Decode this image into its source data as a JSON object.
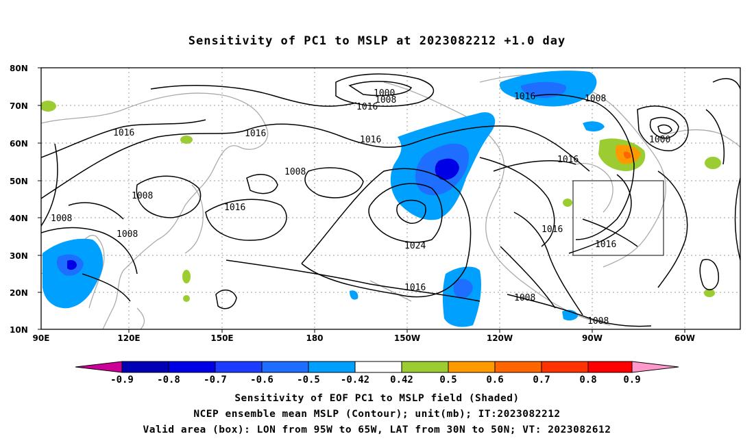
{
  "title": "Sensitivity of PC1 to MSLP at 2023082212 +1.0 day",
  "captions": [
    "Sensitivity of EOF PC1 to MSLP field (Shaded)",
    "NCEP ensemble mean MSLP (Contour); unit(mb); IT:2023082212",
    "Valid area (box): LON from 95W to 65W, LAT from 30N to 50N; VT: 2023082612"
  ],
  "map": {
    "lat_labels": [
      "80N",
      "70N",
      "60N",
      "50N",
      "40N",
      "30N",
      "20N",
      "10N"
    ],
    "lon_labels": [
      "90E",
      "120E",
      "150E",
      "180",
      "150W",
      "120W",
      "90W",
      "60W"
    ],
    "contour_labels": [
      "1000",
      "1008",
      "1016",
      "1016",
      "1016",
      "1008",
      "1008",
      "1016",
      "1008",
      "1016",
      "1024",
      "1016",
      "1008",
      "1008",
      "1016",
      "1008",
      "1000",
      "1016",
      "1016"
    ],
    "colors": {
      "coast": "#aaaaaa",
      "contour": "#000000"
    }
  },
  "colorbar": {
    "tick_labels": [
      "-0.9",
      "-0.8",
      "-0.7",
      "-0.6",
      "-0.5",
      "-0.42",
      "0.42",
      "0.5",
      "0.6",
      "0.7",
      "0.8",
      "0.9"
    ],
    "colors": [
      "#cc0099",
      "#0000b4",
      "#0000e6",
      "#1e3cff",
      "#1e6eff",
      "#00a0ff",
      "#ffffff",
      "#9bcd32",
      "#ff9900",
      "#ff6600",
      "#ff3300",
      "#ff0000",
      "#ff99cc"
    ]
  }
}
